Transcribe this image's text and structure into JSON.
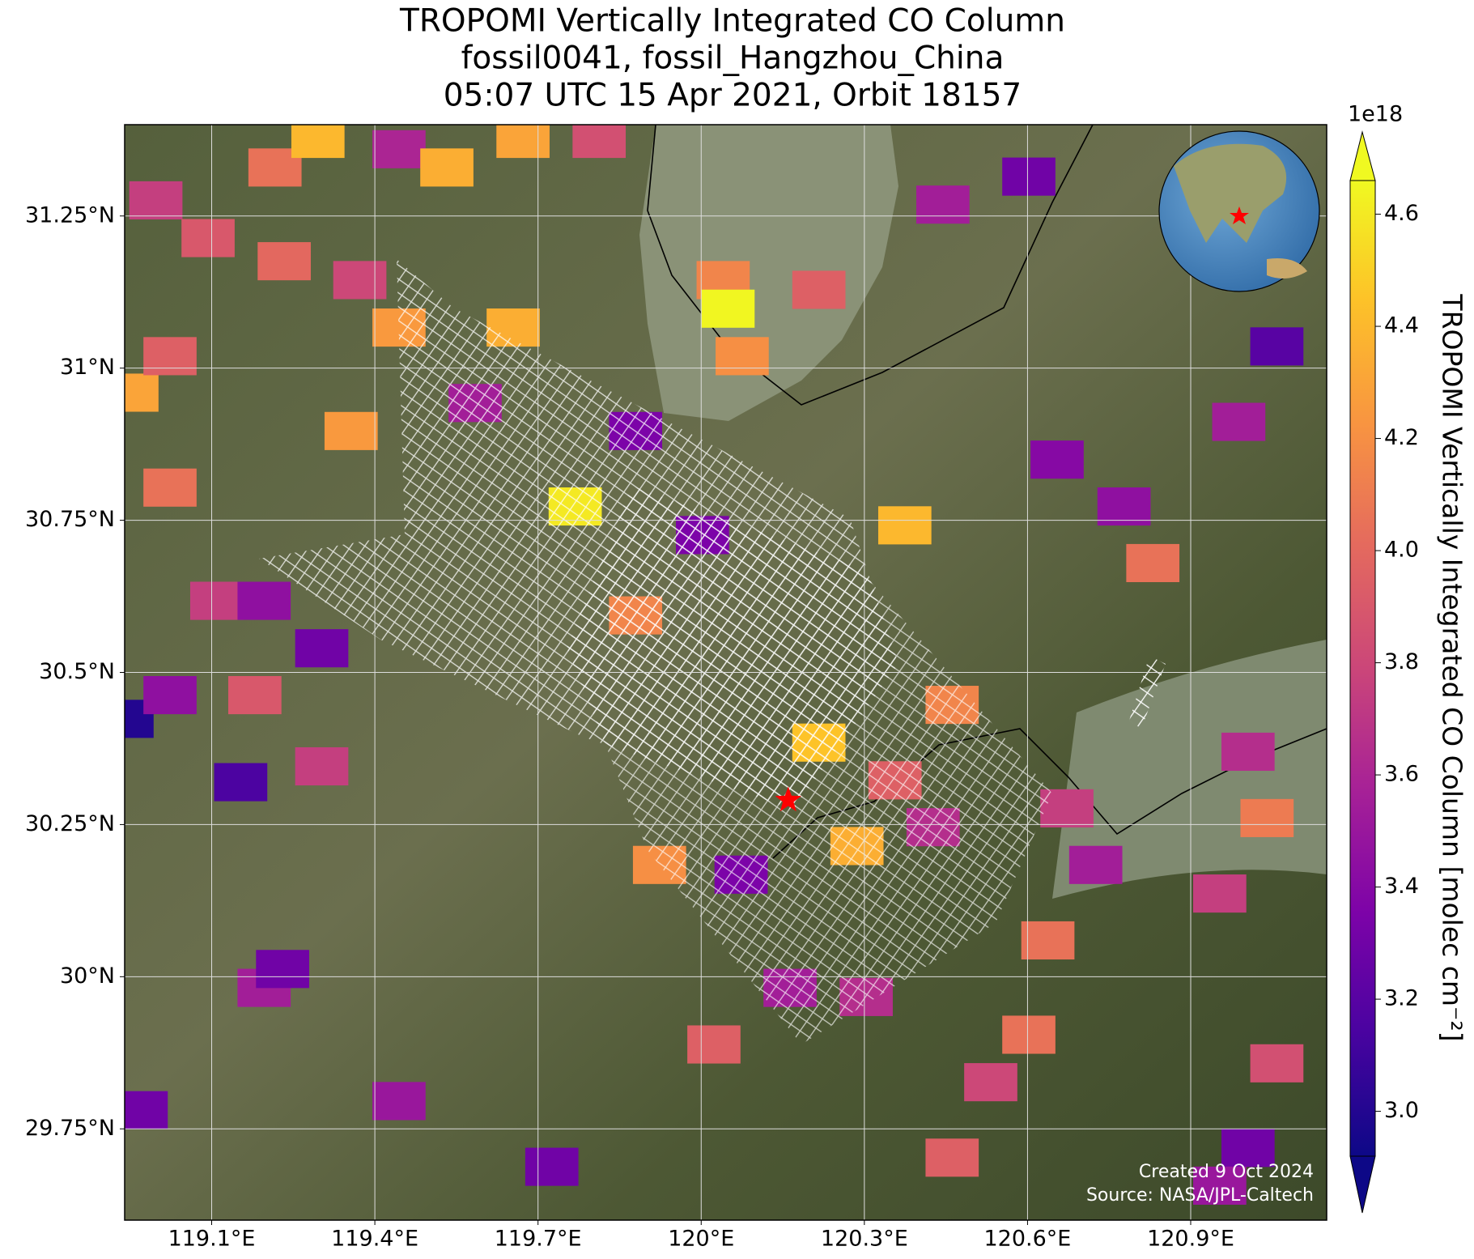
{
  "chart_data": {
    "type": "map",
    "title": [
      "TROPOMI Vertically Integrated CO Column",
      "fossil0041, fossil_Hangzhou_China",
      "05:07 UTC 15 Apr 2021, Orbit 18157"
    ],
    "xlim": [
      118.94,
      121.15
    ],
    "ylim": [
      29.6,
      31.4
    ],
    "xticks": [
      {
        "value": 119.1,
        "label": "119.1°E"
      },
      {
        "value": 119.4,
        "label": "119.4°E"
      },
      {
        "value": 119.7,
        "label": "119.7°E"
      },
      {
        "value": 120.0,
        "label": "120°E"
      },
      {
        "value": 120.3,
        "label": "120.3°E"
      },
      {
        "value": 120.6,
        "label": "120.6°E"
      },
      {
        "value": 120.9,
        "label": "120.9°E"
      }
    ],
    "yticks": [
      {
        "value": 29.75,
        "label": "29.75°N"
      },
      {
        "value": 30.0,
        "label": "30°N"
      },
      {
        "value": 30.25,
        "label": "30.25°N"
      },
      {
        "value": 30.5,
        "label": "30.5°N"
      },
      {
        "value": 30.75,
        "label": "30.75°N"
      },
      {
        "value": 31.0,
        "label": "31°N"
      },
      {
        "value": 31.25,
        "label": "31.25°N"
      }
    ],
    "grid": true,
    "colorbar": {
      "label": "TROPOMI Vertically Integrated CO Column [molec cm⁻²]",
      "exponent": "1e18",
      "colormap": "plasma",
      "clim": [
        2.92,
        4.66
      ],
      "ticks": [
        {
          "value": 3.0,
          "label": "3.0"
        },
        {
          "value": 3.2,
          "label": "3.2"
        },
        {
          "value": 3.4,
          "label": "3.4"
        },
        {
          "value": 3.6,
          "label": "3.6"
        },
        {
          "value": 3.8,
          "label": "3.8"
        },
        {
          "value": 4.0,
          "label": "4.0"
        },
        {
          "value": 4.2,
          "label": "4.2"
        },
        {
          "value": 4.4,
          "label": "4.4"
        },
        {
          "value": 4.6,
          "label": "4.6"
        }
      ]
    },
    "pixels": {
      "lon": [
        118.997,
        119.093,
        119.216,
        119.295,
        119.444,
        119.532,
        119.672,
        119.812,
        119.233,
        119.372,
        118.953,
        119.023,
        119.444,
        119.654,
        120.04,
        120.049,
        120.075,
        120.216,
        119.356,
        119.584,
        119.768,
        119.879,
        120.002,
        119.879,
        119.023,
        119.109,
        119.196,
        119.302,
        118.944,
        119.153,
        119.023,
        119.302,
        119.179,
        120.216,
        120.356,
        120.461,
        120.426,
        120.286,
        119.923,
        120.073,
        120.163,
        120.303,
        120.023,
        120.374,
        120.444,
        120.602,
        120.654,
        120.777,
        121.058,
        120.988,
        120.83,
        121.005,
        120.672,
        120.725,
        120.953,
        121.04,
        120.637,
        119.196,
        119.23,
        119.444,
        118.97,
        119.725,
        120.532,
        120.602,
        121.005,
        121.058,
        120.461,
        120.953
      ],
      "lat": [
        31.276,
        31.214,
        31.33,
        31.377,
        31.36,
        31.33,
        31.377,
        31.377,
        31.176,
        31.145,
        30.96,
        31.02,
        31.067,
        31.067,
        31.145,
        31.098,
        31.02,
        31.129,
        30.897,
        30.943,
        30.773,
        30.897,
        30.726,
        30.594,
        30.804,
        30.618,
        30.618,
        30.54,
        30.424,
        30.32,
        30.463,
        30.346,
        30.463,
        30.385,
        30.323,
        30.447,
        30.246,
        30.215,
        30.184,
        30.168,
        29.982,
        29.967,
        29.889,
        30.742,
        31.269,
        31.315,
        30.85,
        30.773,
        31.036,
        30.912,
        30.68,
        30.37,
        30.277,
        30.184,
        30.137,
        30.261,
        30.06,
        29.982,
        30.013,
        29.796,
        29.781,
        29.688,
        29.827,
        29.905,
        29.719,
        29.858,
        29.703,
        29.657
      ],
      "values": [
        3.75,
        3.9,
        4.05,
        4.4,
        3.6,
        4.35,
        4.3,
        3.85,
        4.0,
        3.8,
        4.3,
        3.95,
        4.25,
        4.35,
        4.15,
        4.65,
        4.2,
        3.95,
        4.25,
        3.55,
        4.6,
        3.35,
        3.35,
        4.15,
        4.05,
        3.75,
        3.45,
        3.3,
        3.0,
        3.15,
        3.45,
        3.75,
        3.9,
        4.45,
        3.95,
        4.15,
        3.65,
        4.35,
        4.2,
        3.35,
        3.55,
        3.65,
        3.95,
        4.4,
        3.55,
        3.3,
        3.4,
        3.45,
        3.2,
        3.55,
        4.05,
        3.65,
        3.75,
        3.55,
        3.75,
        4.1,
        4.05,
        3.55,
        3.3,
        3.5,
        3.3,
        3.3,
        3.8,
        4.05,
        3.3,
        3.85,
        3.95,
        3.5
      ]
    },
    "marker": {
      "lon": 120.16,
      "lat": 30.29
    },
    "credits": [
      "Created 9 Oct 2024",
      "Source: NASA/JPL-Caltech"
    ]
  }
}
